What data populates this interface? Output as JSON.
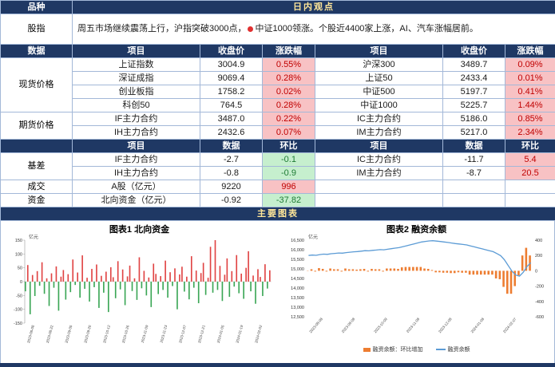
{
  "colors": {
    "header_bg": "#1F3864",
    "banner_text": "#FFE699",
    "positive_bg": "#F8C2C4",
    "positive_text": "#C00000",
    "negative_bg": "#C6EFCE",
    "negative_text": "#1E7B34",
    "grid_border": "#A3B8D8"
  },
  "top": {
    "variety_header": "品种",
    "view_header": "日内观点",
    "instrument": "股指",
    "commentary_1": "周五市场继续震荡上行，沪指突破3000点，",
    "commentary_2": "中证1000领涨。个股近4400家上涨，AI、汽车涨幅居前。"
  },
  "price_table": {
    "corner_header": "数据",
    "headers": [
      "项目",
      "收盘价",
      "涨跌幅",
      "项目",
      "收盘价",
      "涨跌幅"
    ],
    "spot": {
      "label": "现货价格",
      "rows": [
        {
          "l_item": "上证指数",
          "l_close": "3004.9",
          "l_chg": "0.55%",
          "r_item": "沪深300",
          "r_close": "3489.7",
          "r_chg": "0.09%"
        },
        {
          "l_item": "深证成指",
          "l_close": "9069.4",
          "l_chg": "0.28%",
          "r_item": "上证50",
          "r_close": "2433.4",
          "r_chg": "0.01%"
        },
        {
          "l_item": "创业板指",
          "l_close": "1758.2",
          "l_chg": "0.02%",
          "r_item": "中证500",
          "r_close": "5197.7",
          "r_chg": "0.41%"
        },
        {
          "l_item": "科创50",
          "l_close": "764.5",
          "l_chg": "0.28%",
          "r_item": "中证1000",
          "r_close": "5225.7",
          "r_chg": "1.44%"
        }
      ]
    },
    "futures": {
      "label": "期货价格",
      "rows": [
        {
          "l_item": "IF主力合约",
          "l_close": "3487.0",
          "l_chg": "0.22%",
          "r_item": "IC主力合约",
          "r_close": "5186.0",
          "r_chg": "0.85%"
        },
        {
          "l_item": "IH主力合约",
          "l_close": "2432.6",
          "l_chg": "0.07%",
          "r_item": "IM主力合约",
          "r_close": "5217.0",
          "r_chg": "2.34%"
        }
      ]
    }
  },
  "basis_table": {
    "corner_header": "",
    "headers": [
      "项目",
      "数据",
      "环比",
      "项目",
      "数据",
      "环比"
    ],
    "basis": {
      "label": "基差",
      "rows": [
        {
          "l_item": "IF主力合约",
          "l_val": "-2.7",
          "l_chg": "-0.1",
          "r_item": "IC主力合约",
          "r_val": "-11.7",
          "r_chg": "5.4"
        },
        {
          "l_item": "IH主力合约",
          "l_val": "-0.8",
          "l_chg": "-0.9",
          "r_item": "IM主力合约",
          "r_val": "-8.7",
          "r_chg": "20.5"
        }
      ]
    },
    "turnover": {
      "label": "成交",
      "row": {
        "l_item": "A股（亿元）",
        "l_val": "9220",
        "l_chg": "996",
        "r_item": "",
        "r_val": "",
        "r_chg": ""
      }
    },
    "funds": {
      "label": "资金",
      "row": {
        "l_item": "北向资金（亿元）",
        "l_val": "-0.92",
        "l_chg": "-37.82",
        "r_item": "",
        "r_val": "",
        "r_chg": ""
      }
    }
  },
  "charts_banner": "主要图表",
  "chart_data": [
    {
      "type": "bar",
      "title": "图表1 北向资金",
      "ylabel": "亿元",
      "ylim": [
        -150,
        150
      ],
      "yticks": [
        150,
        100,
        50,
        0,
        -50,
        -100,
        -150
      ],
      "pos_color": "#E04343",
      "neg_color": "#3AA655",
      "x_labels": [
        "2023-08-08",
        "2023-08-22",
        "2023-09-05",
        "2023-09-20",
        "2023-10-12",
        "2023-10-26",
        "2023-11-09",
        "2023-11-23",
        "2023-12-07",
        "2023-12-21",
        "2024-01-05",
        "2024-01-19",
        "2024-02-02"
      ],
      "values": [
        -35,
        60,
        -118,
        24,
        -52,
        38,
        -15,
        70,
        -44,
        12,
        -88,
        30,
        -22,
        55,
        -105,
        18,
        42,
        -65,
        27,
        -38,
        80,
        -12,
        33,
        -58,
        95,
        -26,
        14,
        -72,
        46,
        -20,
        62,
        -95,
        21,
        -40,
        36,
        -110,
        52,
        16,
        -60,
        74,
        -28,
        44,
        -85,
        19,
        58,
        -34,
        12,
        -66,
        88,
        -24,
        39,
        -50,
        15,
        -92,
        65,
        28,
        -45,
        20,
        -30,
        76,
        -58,
        34,
        -16,
        48,
        -100,
        26,
        54,
        -36,
        18,
        -64,
        92,
        -22,
        40,
        -78,
        31,
        68,
        -48,
        14,
        126,
        -40,
        150,
        -30,
        57,
        -70,
        25,
        84,
        -55,
        38,
        -18,
        96,
        -42,
        29,
        -62,
        50,
        110,
        -35,
        22,
        -80,
        45,
        17,
        -52,
        63,
        -25,
        41
      ]
    },
    {
      "type": "line+bar",
      "title": "图表2 融资余额",
      "ylabel": "亿元",
      "left_ylim": [
        12500,
        16500
      ],
      "left_yticks": [
        "16,500",
        "16,000",
        "15,500",
        "15,000",
        "14,500",
        "14,000",
        "13,500",
        "13,000",
        "12,500"
      ],
      "right_ylim": [
        -600,
        400
      ],
      "right_yticks": [
        400,
        200,
        0,
        -200,
        -400,
        -600
      ],
      "line_color": "#5B9BD5",
      "bar_color": "#ED7D31",
      "legend": [
        "融资余额：环比增加",
        "融资余额"
      ],
      "x_labels": [
        "2023-08-08",
        "2023-09-08",
        "2023-10-09",
        "2023-11-08",
        "2023-12-08",
        "2024-01-08",
        "2024-02-07"
      ],
      "line_values": [
        15700,
        15720,
        15710,
        15745,
        15770,
        15760,
        15790,
        15810,
        15830,
        15820,
        15850,
        15870,
        15890,
        15905,
        15925,
        15950,
        15940,
        15965,
        15985,
        16005,
        15995,
        16025,
        16055,
        16085,
        16110,
        16155,
        16205,
        16255,
        16305,
        16355,
        16405,
        16435,
        16460,
        16470,
        16450,
        16430,
        16405,
        16380,
        16350,
        16320,
        16300,
        16275,
        16250,
        16200,
        16150,
        16100,
        16050,
        16000,
        15950,
        15900,
        15800,
        15690,
        15480,
        15180,
        14880,
        14680,
        14620,
        14820,
        15120,
        15320
      ],
      "bar_values": [
        0,
        20,
        -10,
        35,
        25,
        -10,
        30,
        20,
        20,
        -10,
        30,
        20,
        20,
        15,
        20,
        25,
        -10,
        25,
        20,
        20,
        -10,
        30,
        30,
        30,
        25,
        45,
        50,
        50,
        50,
        50,
        50,
        30,
        25,
        10,
        -20,
        -20,
        -25,
        -25,
        -30,
        -30,
        -20,
        -25,
        -25,
        -50,
        -50,
        -50,
        -50,
        -50,
        -50,
        -50,
        -100,
        -110,
        -210,
        -300,
        -300,
        -200,
        -60,
        200,
        300,
        200
      ]
    }
  ]
}
